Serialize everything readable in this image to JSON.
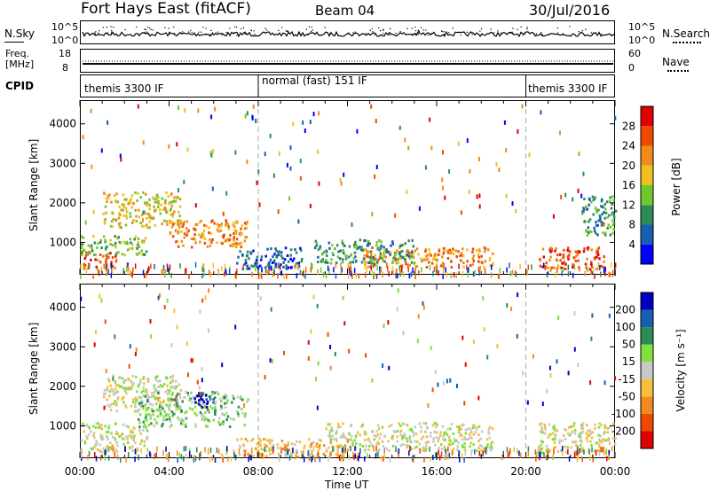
{
  "header": {
    "station": "Fort Hays East (fitACF)",
    "beam": "Beam 04",
    "date": "30/Jul/2016"
  },
  "noise_panel": {
    "left_label": "N.Sky",
    "left_ticks": [
      "10^5",
      "10^0"
    ],
    "right_label": "N.Search",
    "right_ticks": [
      "10^5",
      "10^0"
    ]
  },
  "freq_panel": {
    "left_label_1": "Freq.",
    "left_label_2": "[MHz]",
    "left_ticks": [
      "18",
      "8"
    ],
    "right_label": "Nave",
    "right_ticks": [
      "60",
      "0"
    ]
  },
  "cpid": {
    "label": "CPID",
    "segments": [
      {
        "label": "themis 3300 IF",
        "start_h": 0,
        "end_h": 8
      },
      {
        "label": "normal (fast) 151 IF",
        "start_h": 8,
        "end_h": 20
      },
      {
        "label": "themis 3300 IF",
        "start_h": 20,
        "end_h": 24
      }
    ]
  },
  "chart_data": [
    {
      "type": "heatmap",
      "name": "power",
      "ylabel": "Slant Range [km]",
      "ylim": [
        180,
        4600
      ],
      "yticks": [
        1000,
        2000,
        3000,
        4000
      ],
      "xlim": [
        0,
        24
      ],
      "colorbar_label": "Power [dB]",
      "colorbar_ticks": [
        "28",
        "24",
        "20",
        "16",
        "12",
        "8",
        "4"
      ],
      "colors": [
        "#0000ff",
        "#1560b0",
        "#2e8b57",
        "#6ec830",
        "#f0c020",
        "#f08c1e",
        "#f04a00",
        "#e00000"
      ],
      "regions": [
        {
          "t0": 0.0,
          "t1": 1.6,
          "r0": 350,
          "r1": 800,
          "level": 6
        },
        {
          "t0": 0.0,
          "t1": 3.0,
          "r0": 700,
          "r1": 1200,
          "level": 3
        },
        {
          "t0": 1.0,
          "t1": 4.5,
          "r0": 1400,
          "r1": 2300,
          "level": 4
        },
        {
          "t0": 4.0,
          "t1": 7.5,
          "r0": 900,
          "r1": 1600,
          "level": 5
        },
        {
          "t0": 7.0,
          "t1": 10.0,
          "r0": 350,
          "r1": 900,
          "level": 1
        },
        {
          "t0": 12.5,
          "t1": 18.5,
          "r0": 400,
          "r1": 900,
          "level": 5
        },
        {
          "t0": 10.5,
          "t1": 15.0,
          "r0": 500,
          "r1": 1100,
          "level": 2
        },
        {
          "t0": 20.5,
          "t1": 23.5,
          "r0": 350,
          "r1": 900,
          "level": 6
        },
        {
          "t0": 22.5,
          "t1": 24.0,
          "r0": 1200,
          "r1": 2200,
          "level": 2
        }
      ]
    },
    {
      "type": "heatmap",
      "name": "velocity",
      "ylabel": "Slant Range [km]",
      "xlabel": "Time UT",
      "ylim": [
        180,
        4600
      ],
      "yticks": [
        1000,
        2000,
        3000,
        4000
      ],
      "xlim": [
        0,
        24
      ],
      "xticks": [
        "00:00",
        "04:00",
        "08:00",
        "12:00",
        "16:00",
        "20:00",
        "00:00"
      ],
      "colorbar_label": "Velocity [m s⁻¹]",
      "colorbar_ticks": [
        "200",
        "100",
        "50",
        "15",
        "-15",
        "-50",
        "-100",
        "-200"
      ],
      "colors": [
        "#e00000",
        "#f04a00",
        "#f08c1e",
        "#f5be3c",
        "#c8c8c8",
        "#80e040",
        "#2e8b57",
        "#1560b0",
        "#0000c0"
      ],
      "regions": [
        {
          "t0": 0.0,
          "t1": 3.0,
          "r0": 350,
          "r1": 1100,
          "level": 4
        },
        {
          "t0": 1.0,
          "t1": 4.5,
          "r0": 1400,
          "r1": 2300,
          "level": 4
        },
        {
          "t0": 2.5,
          "t1": 7.5,
          "r0": 1000,
          "r1": 1900,
          "level": 5
        },
        {
          "t0": 5.0,
          "t1": 6.0,
          "r0": 1500,
          "r1": 1900,
          "level": 8
        },
        {
          "t0": 7.0,
          "t1": 12.0,
          "r0": 250,
          "r1": 700,
          "level": 3
        },
        {
          "t0": 11.0,
          "t1": 18.5,
          "r0": 400,
          "r1": 1100,
          "level": 4
        },
        {
          "t0": 20.5,
          "t1": 24.0,
          "r0": 300,
          "r1": 1100,
          "level": 4
        }
      ]
    }
  ]
}
